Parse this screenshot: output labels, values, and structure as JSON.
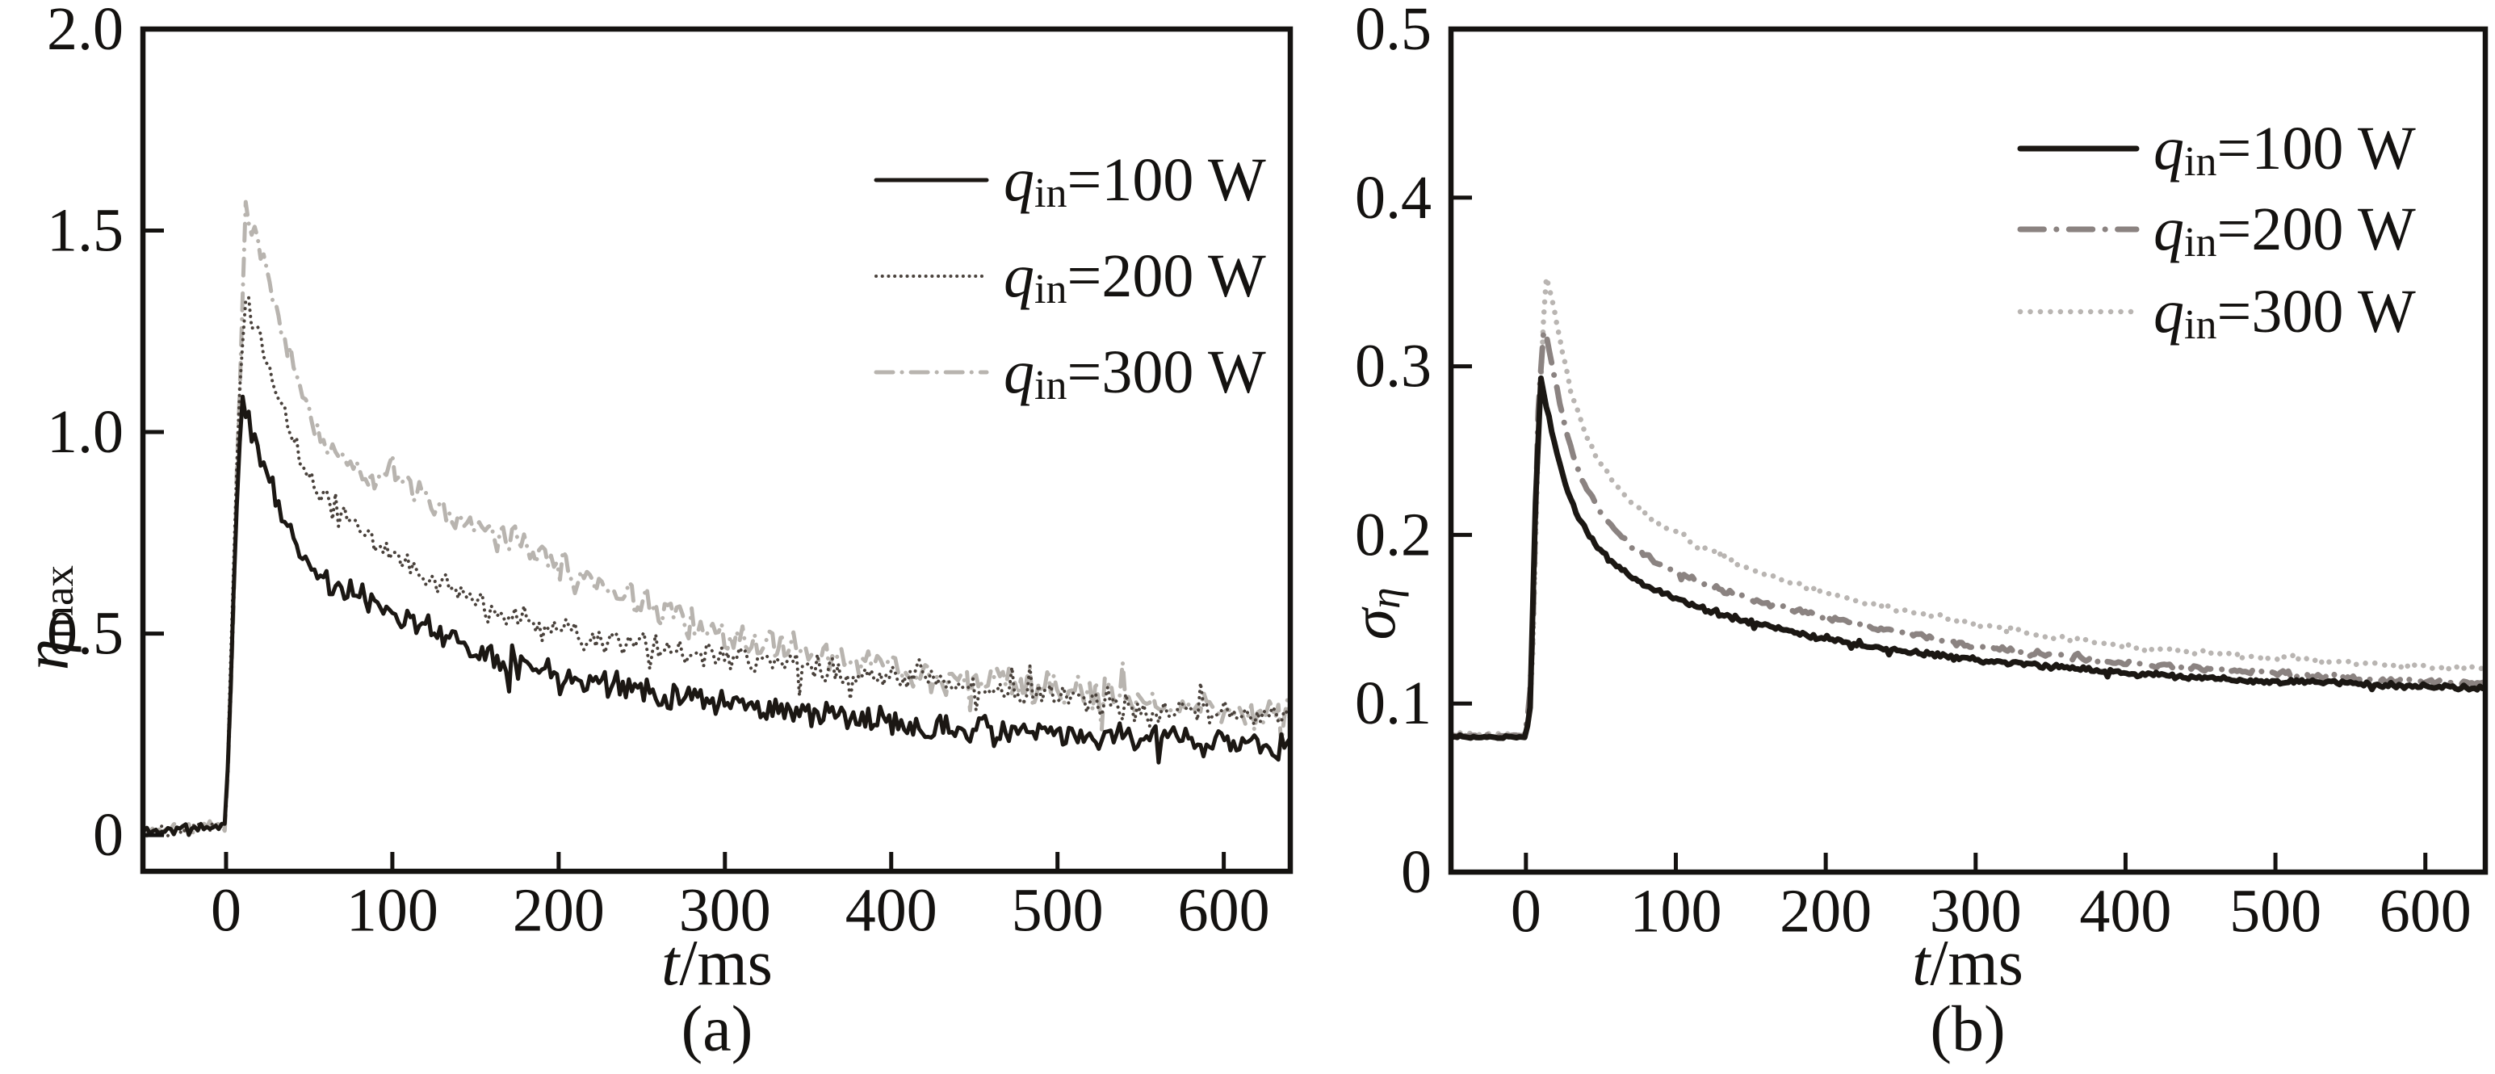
{
  "figure": {
    "background": "#ffffff",
    "frame_color": "#141210",
    "tick_label_color": "#141210",
    "panel_count": 2
  },
  "chart_data": [
    {
      "id": "a",
      "type": "line",
      "title": "",
      "caption": "(a)",
      "xlabel": {
        "var": "t",
        "rest": "/ms"
      },
      "ylabel": {
        "var": "η",
        "sub": "max"
      },
      "xlim": [
        -50,
        640
      ],
      "ylim": [
        -0.09,
        2.0
      ],
      "xticks": [
        0,
        100,
        200,
        300,
        400,
        500,
        600
      ],
      "xtick_labels": [
        "0",
        "100",
        "200",
        "300",
        "400",
        "500",
        "600"
      ],
      "yticks": [
        0,
        0.5,
        1.0,
        1.5,
        2.0
      ],
      "ytick_labels": [
        "0",
        "0.5",
        "1.0",
        "1.5",
        "2.0"
      ],
      "grid": false,
      "legend_position": "upper right",
      "series": [
        {
          "name": {
            "var": "q",
            "sub": "in",
            "rest": "=100 W"
          },
          "power_W": 100,
          "color": "#1b1713",
          "style": "solid",
          "width": 5,
          "noise": 0.038,
          "seed": 11,
          "anchors": [
            [
              -50,
              0.01
            ],
            [
              0,
              0.02
            ],
            [
              3,
              0.4
            ],
            [
              6,
              0.8
            ],
            [
              10,
              1.08
            ],
            [
              14,
              1.02
            ],
            [
              20,
              0.95
            ],
            [
              27,
              0.87
            ],
            [
              35,
              0.78
            ],
            [
              45,
              0.7
            ],
            [
              55,
              0.65
            ],
            [
              65,
              0.62
            ],
            [
              80,
              0.59
            ],
            [
              100,
              0.56
            ],
            [
              120,
              0.52
            ],
            [
              150,
              0.46
            ],
            [
              180,
              0.42
            ],
            [
              210,
              0.39
            ],
            [
              250,
              0.36
            ],
            [
              300,
              0.33
            ],
            [
              350,
              0.3
            ],
            [
              400,
              0.28
            ],
            [
              450,
              0.26
            ],
            [
              500,
              0.25
            ],
            [
              550,
              0.24
            ],
            [
              600,
              0.23
            ],
            [
              640,
              0.22
            ]
          ]
        },
        {
          "name": {
            "var": "q",
            "sub": "in",
            "rest": "=200 W"
          },
          "power_W": 200,
          "color": "#4a423c",
          "style": "dot",
          "width": 4,
          "noise": 0.042,
          "seed": 22,
          "anchors": [
            [
              -50,
              0.01
            ],
            [
              0,
              0.03
            ],
            [
              4,
              0.6
            ],
            [
              8,
              1.1
            ],
            [
              12,
              1.35
            ],
            [
              16,
              1.28
            ],
            [
              22,
              1.2
            ],
            [
              30,
              1.1
            ],
            [
              38,
              1.0
            ],
            [
              46,
              0.93
            ],
            [
              58,
              0.85
            ],
            [
              70,
              0.79
            ],
            [
              85,
              0.74
            ],
            [
              100,
              0.7
            ],
            [
              120,
              0.64
            ],
            [
              150,
              0.58
            ],
            [
              180,
              0.53
            ],
            [
              220,
              0.49
            ],
            [
              260,
              0.46
            ],
            [
              300,
              0.44
            ],
            [
              340,
              0.42
            ],
            [
              380,
              0.4
            ],
            [
              420,
              0.38
            ],
            [
              460,
              0.36
            ],
            [
              500,
              0.34
            ],
            [
              550,
              0.32
            ],
            [
              600,
              0.3
            ],
            [
              640,
              0.29
            ]
          ]
        },
        {
          "name": {
            "var": "q",
            "sub": "in",
            "rest": "=300 W"
          },
          "power_W": 300,
          "color": "#b8b4af",
          "style": "dashdot",
          "width": 5,
          "noise": 0.05,
          "seed": 33,
          "anchors": [
            [
              -50,
              0.01
            ],
            [
              0,
              0.02
            ],
            [
              4,
              0.5
            ],
            [
              8,
              1.1
            ],
            [
              12,
              1.58
            ],
            [
              16,
              1.52
            ],
            [
              20,
              1.46
            ],
            [
              25,
              1.4
            ],
            [
              32,
              1.29
            ],
            [
              40,
              1.17
            ],
            [
              50,
              1.05
            ],
            [
              60,
              0.97
            ],
            [
              72,
              0.93
            ],
            [
              85,
              0.9
            ],
            [
              100,
              0.88
            ],
            [
              120,
              0.83
            ],
            [
              150,
              0.77
            ],
            [
              180,
              0.71
            ],
            [
              210,
              0.65
            ],
            [
              240,
              0.59
            ],
            [
              270,
              0.55
            ],
            [
              300,
              0.5
            ],
            [
              340,
              0.46
            ],
            [
              380,
              0.43
            ],
            [
              420,
              0.4
            ],
            [
              460,
              0.38
            ],
            [
              500,
              0.36
            ],
            [
              550,
              0.33
            ],
            [
              600,
              0.31
            ],
            [
              640,
              0.3
            ]
          ]
        }
      ]
    },
    {
      "id": "b",
      "type": "line",
      "title": "",
      "caption": "(b)",
      "xlabel": {
        "var": "t",
        "rest": "/ms"
      },
      "ylabel": {
        "var": "σ",
        "sub": "η"
      },
      "xlim": [
        -50,
        640
      ],
      "ylim": [
        0,
        0.5
      ],
      "xticks": [
        0,
        100,
        200,
        300,
        400,
        500,
        600
      ],
      "xtick_labels": [
        "0",
        "100",
        "200",
        "300",
        "400",
        "500",
        "600"
      ],
      "yticks": [
        0,
        0.1,
        0.2,
        0.3,
        0.4,
        0.5
      ],
      "ytick_labels": [
        "0",
        "0.1",
        "0.2",
        "0.3",
        "0.4",
        "0.5"
      ],
      "grid": false,
      "legend_position": "upper right",
      "series": [
        {
          "name": {
            "var": "q",
            "sub": "in",
            "rest": "=100 W"
          },
          "power_W": 100,
          "color": "#1b1713",
          "style": "solid",
          "width": 7,
          "noise": 0.0018,
          "seed": 44,
          "anchors": [
            [
              -50,
              0.08
            ],
            [
              0,
              0.08
            ],
            [
              3,
              0.1
            ],
            [
              6,
              0.21
            ],
            [
              10,
              0.293
            ],
            [
              14,
              0.275
            ],
            [
              20,
              0.25
            ],
            [
              27,
              0.228
            ],
            [
              35,
              0.21
            ],
            [
              45,
              0.196
            ],
            [
              55,
              0.186
            ],
            [
              70,
              0.175
            ],
            [
              85,
              0.168
            ],
            [
              100,
              0.162
            ],
            [
              125,
              0.154
            ],
            [
              150,
              0.148
            ],
            [
              180,
              0.142
            ],
            [
              210,
              0.137
            ],
            [
              250,
              0.131
            ],
            [
              300,
              0.126
            ],
            [
              350,
              0.122
            ],
            [
              400,
              0.118
            ],
            [
              450,
              0.115
            ],
            [
              500,
              0.113
            ],
            [
              550,
              0.112
            ],
            [
              600,
              0.11
            ],
            [
              640,
              0.109
            ]
          ]
        },
        {
          "name": {
            "var": "q",
            "sub": "in",
            "rest": "=200 W"
          },
          "power_W": 200,
          "color": "#8b8381",
          "style": "dashdot",
          "width": 7,
          "noise": 0.0018,
          "seed": 55,
          "anchors": [
            [
              -50,
              0.081
            ],
            [
              0,
              0.081
            ],
            [
              4,
              0.12
            ],
            [
              8,
              0.27
            ],
            [
              12,
              0.325
            ],
            [
              16,
              0.308
            ],
            [
              22,
              0.28
            ],
            [
              28,
              0.257
            ],
            [
              36,
              0.236
            ],
            [
              45,
              0.22
            ],
            [
              55,
              0.207
            ],
            [
              70,
              0.194
            ],
            [
              85,
              0.185
            ],
            [
              100,
              0.178
            ],
            [
              125,
              0.169
            ],
            [
              150,
              0.162
            ],
            [
              180,
              0.155
            ],
            [
              210,
              0.149
            ],
            [
              250,
              0.142
            ],
            [
              300,
              0.134
            ],
            [
              350,
              0.129
            ],
            [
              400,
              0.124
            ],
            [
              450,
              0.121
            ],
            [
              500,
              0.118
            ],
            [
              550,
              0.115
            ],
            [
              600,
              0.113
            ],
            [
              640,
              0.112
            ]
          ]
        },
        {
          "name": {
            "var": "q",
            "sub": "in",
            "rest": "=300 W"
          },
          "power_W": 300,
          "color": "#b9b5b2",
          "style": "dot",
          "width": 6.5,
          "noise": 0.0018,
          "seed": 66,
          "anchors": [
            [
              -50,
              0.082
            ],
            [
              0,
              0.082
            ],
            [
              4,
              0.11
            ],
            [
              8,
              0.25
            ],
            [
              13,
              0.355
            ],
            [
              18,
              0.338
            ],
            [
              24,
              0.31
            ],
            [
              30,
              0.285
            ],
            [
              38,
              0.264
            ],
            [
              46,
              0.248
            ],
            [
              56,
              0.234
            ],
            [
              70,
              0.22
            ],
            [
              85,
              0.209
            ],
            [
              100,
              0.201
            ],
            [
              125,
              0.19
            ],
            [
              150,
              0.18
            ],
            [
              180,
              0.171
            ],
            [
              210,
              0.163
            ],
            [
              250,
              0.155
            ],
            [
              300,
              0.147
            ],
            [
              350,
              0.14
            ],
            [
              400,
              0.134
            ],
            [
              450,
              0.13
            ],
            [
              500,
              0.127
            ],
            [
              550,
              0.124
            ],
            [
              600,
              0.122
            ],
            [
              640,
              0.121
            ]
          ]
        }
      ]
    }
  ]
}
